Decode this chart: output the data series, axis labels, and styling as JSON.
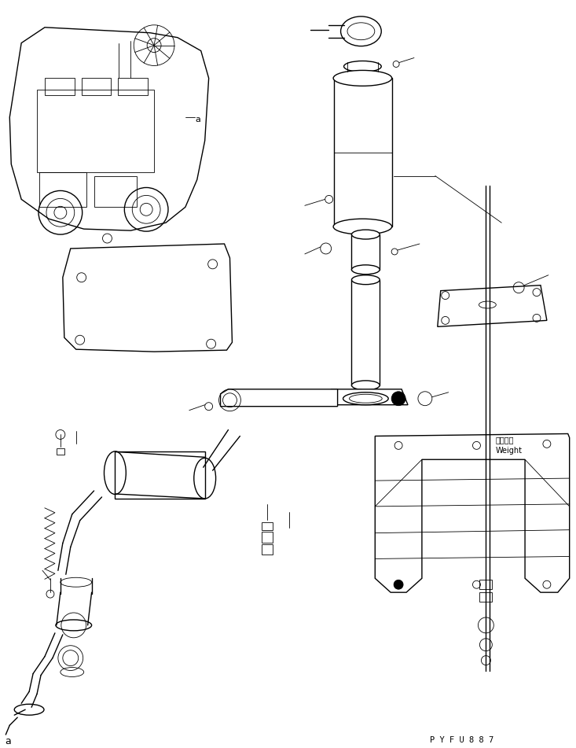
{
  "background_color": "#ffffff",
  "line_color": "#000000",
  "part_code": "P Y F U 8 8 7",
  "weight_label_jp": "ウェイト",
  "weight_label_en": "Weight",
  "label_a": "a",
  "fig_width": 7.33,
  "fig_height": 9.51,
  "dpi": 100
}
